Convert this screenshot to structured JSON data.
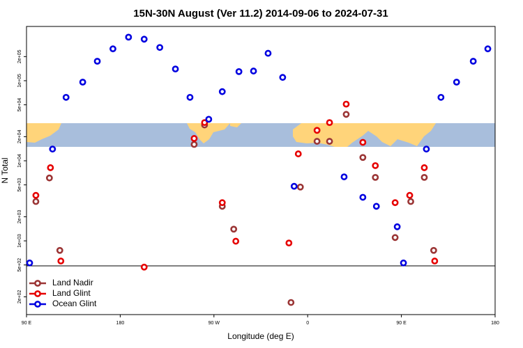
{
  "chart_data": {
    "type": "scatter",
    "title": "15N-30N August (Ver 11.2)   2014-09-06 to 2024-07-31",
    "x_label": "Longitude (deg E)",
    "y_label": "N Total",
    "log_y": true,
    "legend": "lower left",
    "xlim": [
      90,
      540
    ],
    "xticks": [
      {
        "value": 90,
        "label": "90 E"
      },
      180,
      {
        "value": 270,
        "label": "90 W"
      },
      {
        "value": 360,
        "label": "0"
      },
      {
        "value": 450,
        "label": "90 E"
      },
      {
        "value": 540,
        "label": "180"
      }
    ],
    "ylim": [
      120,
      476000
    ],
    "yticks": [
      {
        "value": 200,
        "label": "2e+02"
      },
      {
        "value": 500,
        "label": "5e+02"
      },
      {
        "value": 1000,
        "label": "1e+03"
      },
      {
        "value": 2000,
        "label": "2e+03"
      },
      {
        "value": 5000,
        "label": "5e+03"
      },
      {
        "value": 10000,
        "label": "1e+04"
      },
      {
        "value": 20000,
        "label": "2e+04"
      },
      {
        "value": 50000,
        "label": "5e+04"
      },
      {
        "value": 100000,
        "label": "1e+05"
      },
      {
        "value": 200000,
        "label": "2e+05"
      }
    ],
    "series": [
      {
        "name": "Land Nadir",
        "color": "#9b3535",
        "x": [
          99,
          112,
          122,
          251,
          261,
          278,
          289,
          344,
          353,
          369,
          381,
          397,
          413,
          425,
          444,
          459,
          472,
          481
        ],
        "values": [
          3100,
          6100,
          760,
          16000,
          28000,
          2700,
          1400,
          170,
          4700,
          17500,
          17500,
          38000,
          11000,
          6200,
          1100,
          3100,
          6200,
          760
        ]
      },
      {
        "name": "Land Glint",
        "color": "#e60000",
        "x": [
          99,
          113,
          123,
          203,
          251,
          261,
          278,
          291,
          342,
          351,
          369,
          381,
          397,
          413,
          425,
          444,
          458,
          472,
          482
        ],
        "values": [
          3700,
          8200,
          560,
          470,
          19000,
          30000,
          3000,
          990,
          940,
          12200,
          24000,
          30000,
          51000,
          17000,
          8700,
          3000,
          3700,
          8200,
          560
        ]
      },
      {
        "name": "Ocean Glint",
        "color": "#0000e0",
        "x": [
          93,
          115,
          128,
          144,
          158,
          173,
          188,
          203,
          218,
          233,
          247,
          265,
          278,
          294,
          308,
          322,
          336,
          347,
          395,
          413,
          426,
          446,
          452,
          474,
          488,
          503,
          519,
          533
        ],
        "values": [
          530,
          14000,
          62000,
          96000,
          175000,
          250000,
          350000,
          330000,
          260000,
          140000,
          62000,
          33000,
          73000,
          130000,
          132000,
          220000,
          110000,
          4800,
          6300,
          3500,
          2700,
          1500,
          530,
          14000,
          62000,
          96000,
          175000,
          250000
        ]
      }
    ]
  }
}
